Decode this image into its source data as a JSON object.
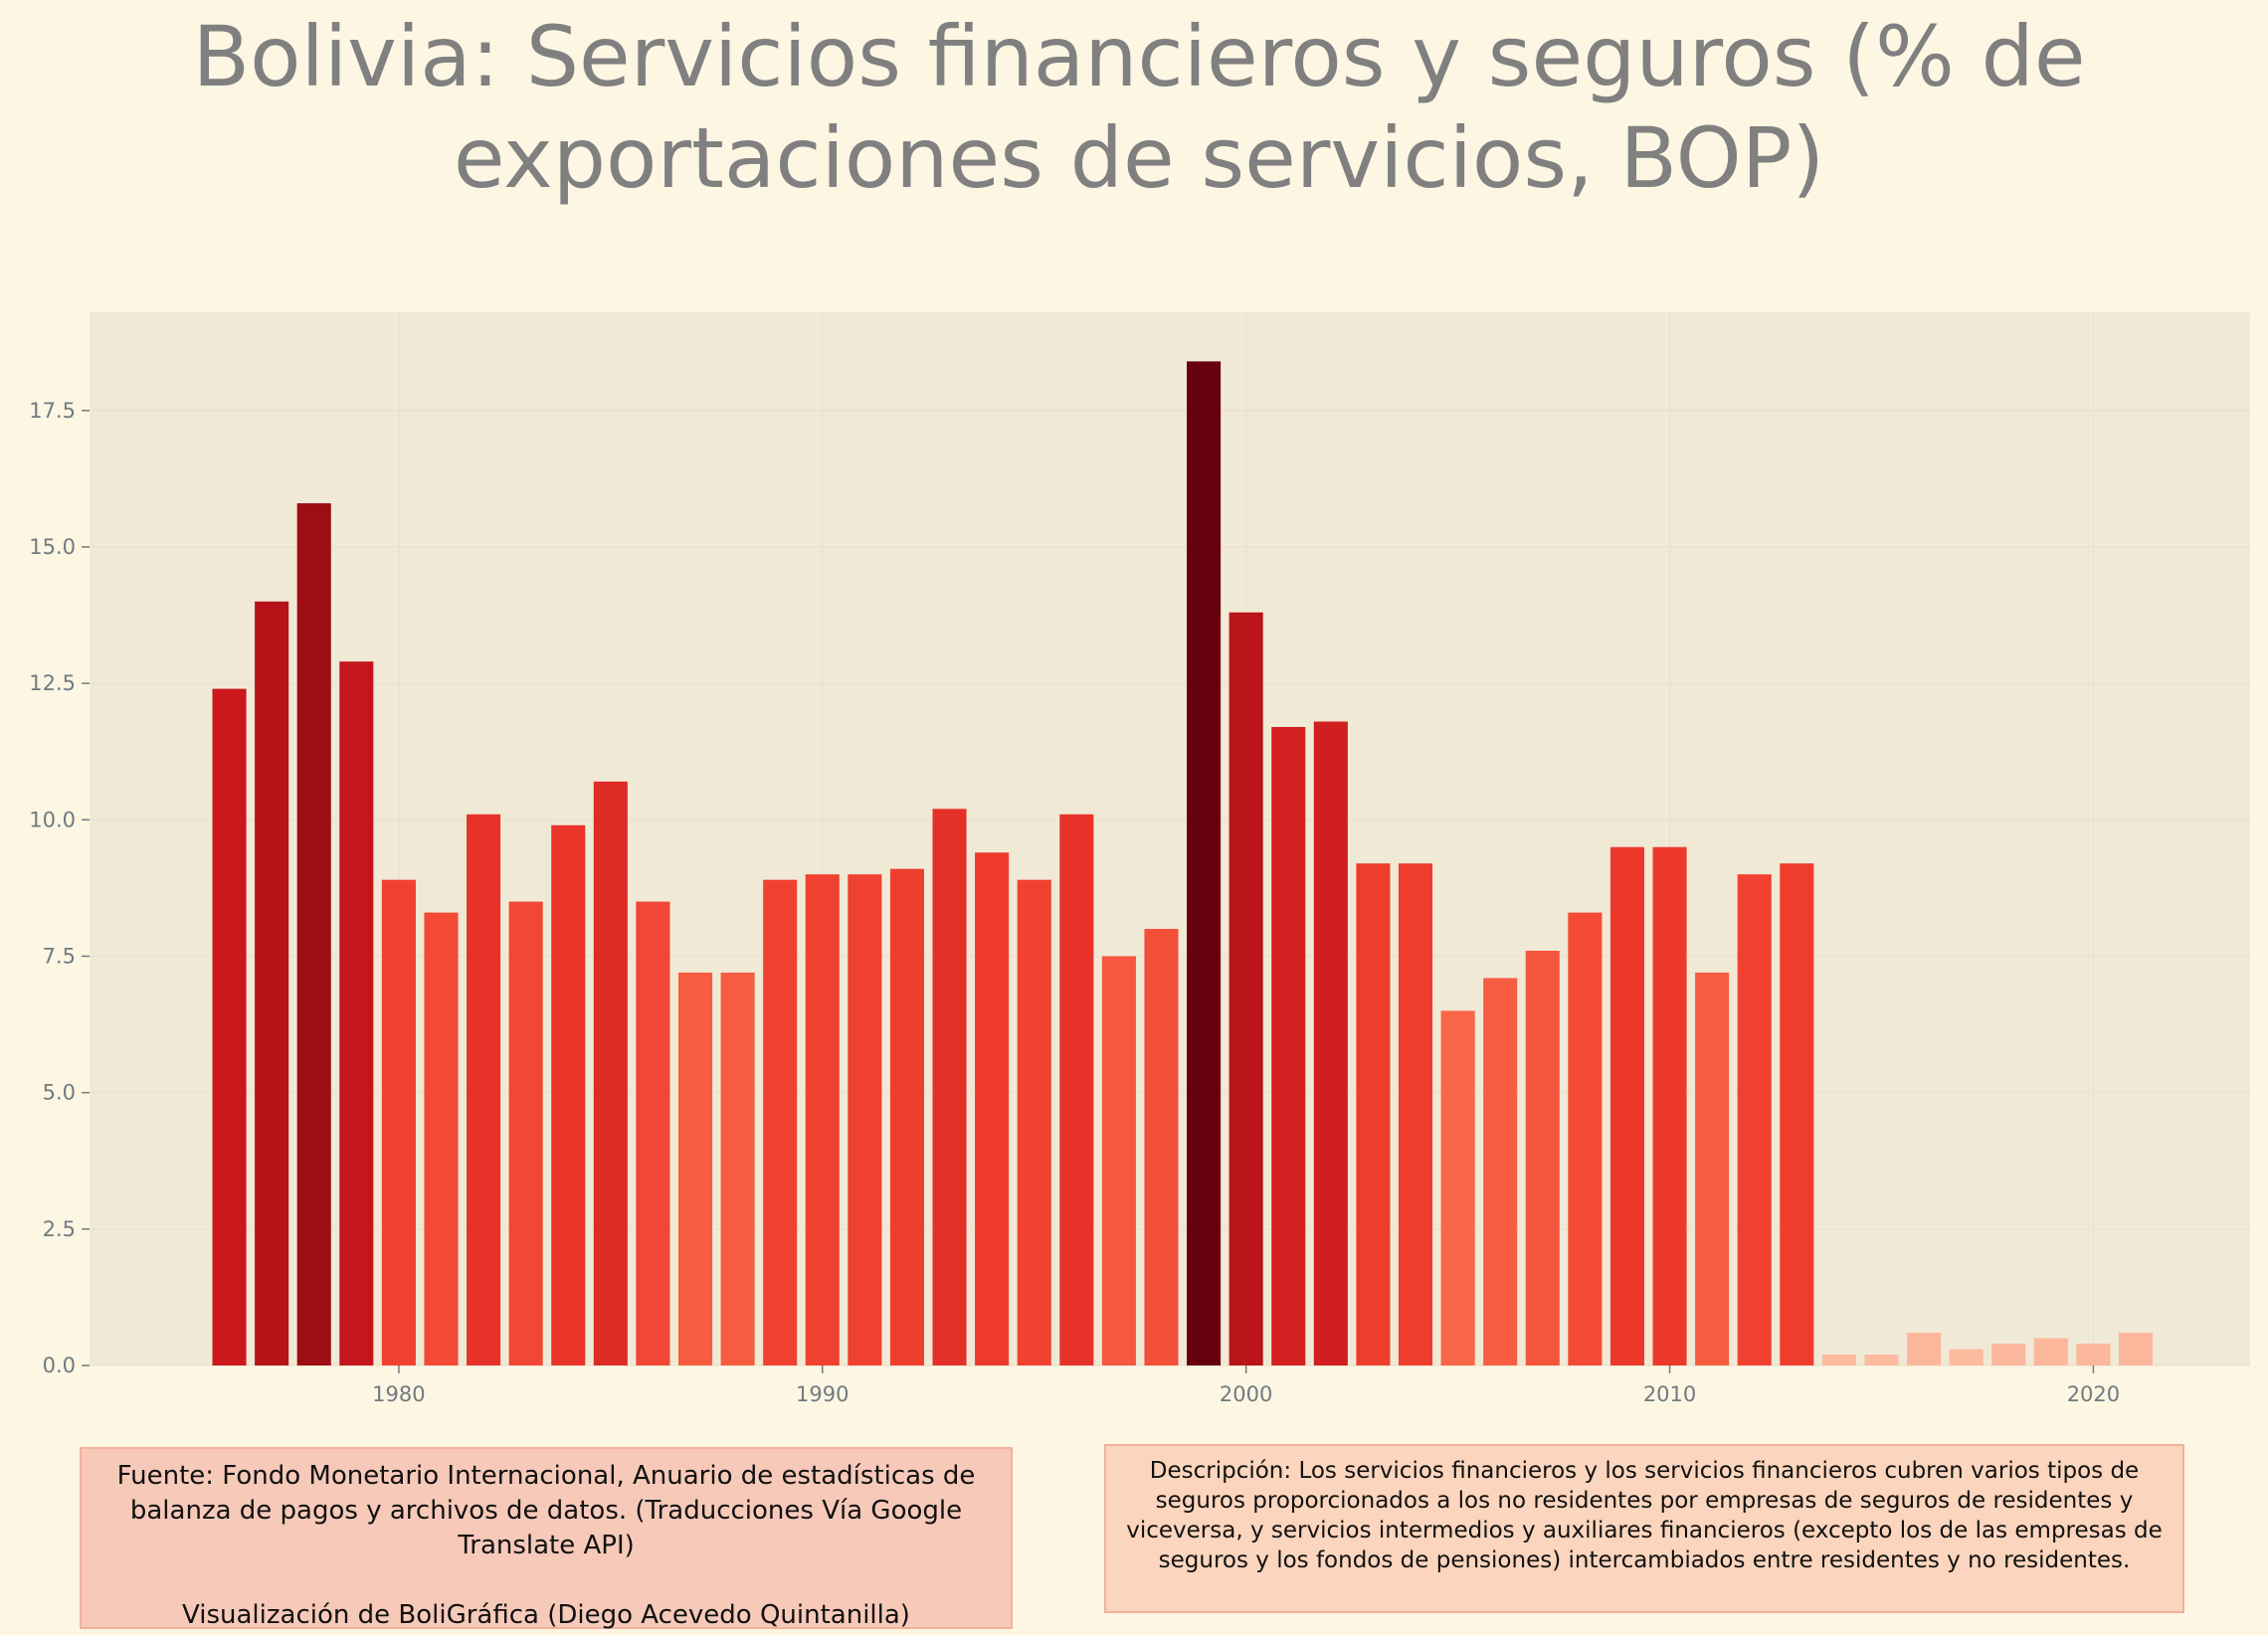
{
  "page": {
    "title": "Bolivia:  Servicios financieros y seguros (% de exportaciones de servicios, BOP)",
    "source_note": "Fuente: Fondo Monetario Internacional, Anuario de estadísticas de balanza de pagos y archivos de datos. (Traducciones Vía Google Translate API)\n\nVisualización de BoliGráfica (Diego Acevedo Quintanilla)",
    "description_note": "Descripción: Los servicios financieros y los servicios financieros cubren varios tipos de seguros proporcionados a los no residentes por empresas de seguros de residentes y viceversa, y servicios intermedios y auxiliares financieros (excepto los de las empresas de seguros y los fondos de pensiones) intercambiados entre residentes y no residentes."
  },
  "colors": {
    "background": "#fdf6e3",
    "plot_background": "#f0e9d6",
    "color_scale": [
      "#fcbba1",
      "#fc9272",
      "#fb6a4a",
      "#ef3b2c",
      "#cb181d",
      "#a50f15",
      "#67000d"
    ]
  },
  "chart_data": {
    "type": "bar",
    "title": "Bolivia:  Servicios financieros y seguros (% de exportaciones de servicios, BOP)",
    "xlabel": "",
    "ylabel": "",
    "x": [
      1976,
      1977,
      1978,
      1979,
      1980,
      1981,
      1982,
      1983,
      1984,
      1985,
      1986,
      1987,
      1988,
      1989,
      1990,
      1991,
      1992,
      1993,
      1994,
      1995,
      1996,
      1997,
      1998,
      1999,
      2000,
      2001,
      2002,
      2003,
      2004,
      2005,
      2006,
      2007,
      2008,
      2009,
      2010,
      2011,
      2012,
      2013,
      2014,
      2015,
      2016,
      2017,
      2018,
      2019,
      2020,
      2021
    ],
    "values": [
      12.4,
      14.0,
      15.8,
      12.9,
      8.9,
      8.3,
      10.1,
      8.5,
      9.9,
      10.7,
      8.5,
      7.2,
      7.2,
      8.9,
      9.0,
      9.0,
      9.1,
      10.2,
      9.4,
      8.9,
      10.1,
      7.5,
      8.0,
      18.4,
      13.8,
      11.7,
      11.8,
      9.2,
      9.2,
      6.5,
      7.1,
      7.6,
      8.3,
      9.5,
      9.5,
      7.2,
      9.0,
      9.2,
      0.2,
      0.2,
      0.6,
      0.3,
      0.4,
      0.5,
      0.4,
      0.6
    ],
    "xlim": [
      1972.7,
      1923.7
    ],
    "ylim": [
      0,
      19.3
    ],
    "x_ticks": [
      "1980",
      "1990",
      "2000",
      "2010",
      "2020"
    ],
    "x_tick_values": [
      1980,
      1990,
      2000,
      2010,
      2020
    ],
    "y_ticks": [
      "0.0",
      "2.5",
      "5.0",
      "7.5",
      "10.0",
      "12.5",
      "15.0",
      "17.5"
    ],
    "y_tick_values": [
      0,
      2.5,
      5,
      7.5,
      10,
      12.5,
      15,
      17.5
    ],
    "grid": true,
    "legend": "none"
  }
}
